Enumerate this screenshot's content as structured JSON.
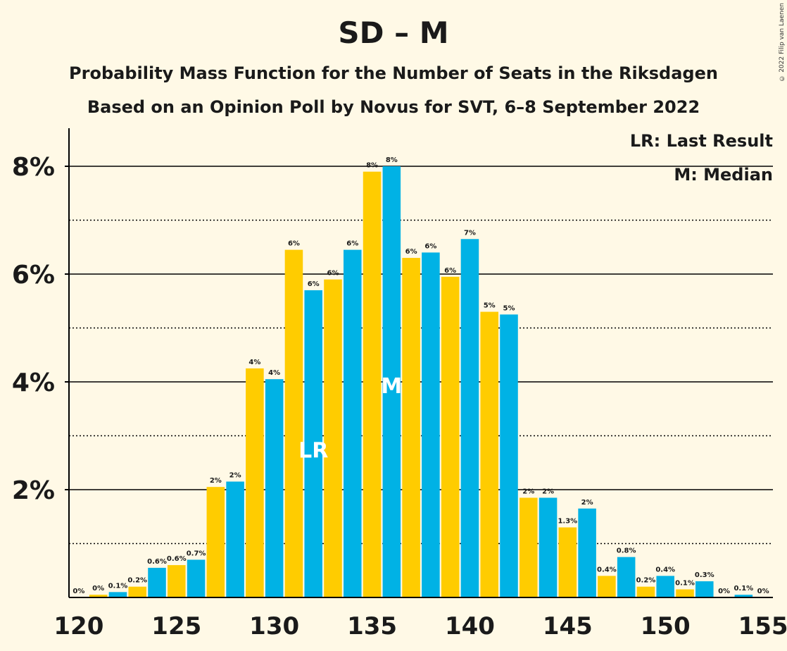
{
  "header": {
    "title": "SD – M",
    "subtitle1": "Probability Mass Function for the Number of Seats in the Riksdagen",
    "subtitle2": "Based on an Opinion Poll by Novus for SVT, 6–8 September 2022",
    "copyright": "© 2022 Filip van Laenen"
  },
  "legend": {
    "last_result": "LR: Last Result",
    "median": "M: Median"
  },
  "colors": {
    "blue": "#00B2E5",
    "yellow": "#FFCC00",
    "background": "#FFF9E6",
    "text": "#1a1a1a"
  },
  "chart_data": {
    "type": "bar",
    "x": [
      120,
      121,
      122,
      123,
      124,
      125,
      126,
      127,
      128,
      129,
      130,
      131,
      132,
      133,
      134,
      135,
      136,
      137,
      138,
      139,
      140,
      141,
      142,
      143,
      144,
      145,
      146,
      147,
      148,
      149,
      150,
      151,
      152,
      153,
      154,
      155
    ],
    "values": [
      0,
      0.05,
      0.1,
      0.2,
      0.55,
      0.6,
      0.7,
      2.05,
      2.15,
      4.25,
      4.05,
      6.45,
      5.7,
      5.9,
      6.45,
      7.9,
      8.0,
      6.3,
      6.4,
      5.95,
      6.65,
      5.3,
      5.25,
      1.85,
      1.85,
      1.3,
      1.65,
      0.4,
      0.75,
      0.2,
      0.4,
      0.15,
      0.3,
      0,
      0.05,
      0
    ],
    "labels": [
      "0%",
      "0%",
      "0.1%",
      "0.2%",
      "0.6%",
      "0.6%",
      "0.7%",
      "2%",
      "2%",
      "4%",
      "4%",
      "6%",
      "6%",
      "6%",
      "6%",
      "8%",
      "8%",
      "6%",
      "6%",
      "6%",
      "7%",
      "5%",
      "5%",
      "2%",
      "2%",
      "1.3%",
      "2%",
      "0.4%",
      "0.8%",
      "0.2%",
      "0.4%",
      "0.1%",
      "0.3%",
      "0%",
      "0.1%",
      "0%"
    ],
    "colors": [
      "blue",
      "yellow"
    ],
    "xticks": [
      120,
      125,
      130,
      135,
      140,
      145,
      150,
      155
    ],
    "yticks": [
      {
        "value": 2,
        "label": "2%"
      },
      {
        "value": 4,
        "label": "4%"
      },
      {
        "value": 6,
        "label": "6%"
      },
      {
        "value": 8,
        "label": "8%"
      }
    ],
    "ylim": [
      0,
      8.7
    ],
    "xlim": [
      119.5,
      155.5
    ],
    "last_result": {
      "seat": 132,
      "label": "LR"
    },
    "median": {
      "seat": 136,
      "label": "M"
    }
  }
}
